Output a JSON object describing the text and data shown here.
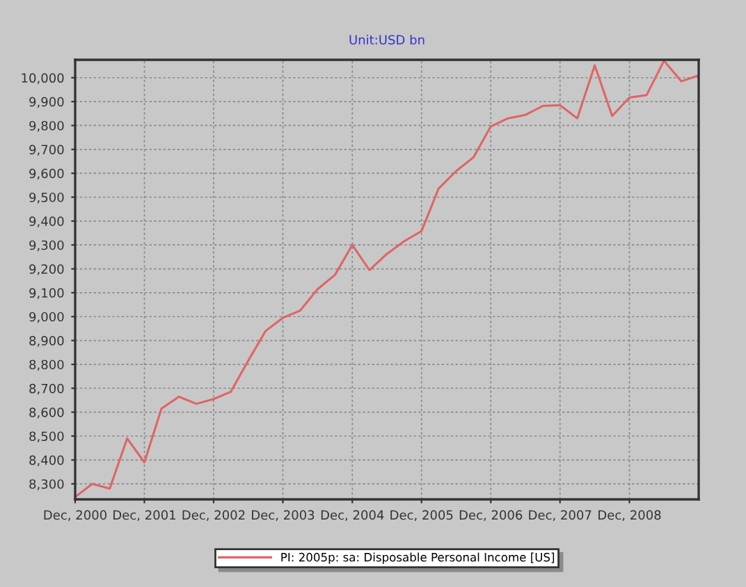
{
  "chart_data": {
    "type": "line",
    "title": "Unit:USD bn",
    "x": [
      "2000-12",
      "2001-03",
      "2001-06",
      "2001-09",
      "2001-12",
      "2002-03",
      "2002-06",
      "2002-09",
      "2002-12",
      "2003-03",
      "2003-06",
      "2003-09",
      "2003-12",
      "2004-03",
      "2004-06",
      "2004-09",
      "2004-12",
      "2005-03",
      "2005-06",
      "2005-09",
      "2005-12",
      "2006-03",
      "2006-06",
      "2006-09",
      "2006-12",
      "2007-03",
      "2007-06",
      "2007-09",
      "2007-12",
      "2008-03",
      "2008-06",
      "2008-09",
      "2008-12",
      "2009-03",
      "2009-06",
      "2009-09",
      "2009-12"
    ],
    "series": [
      {
        "name": "PI: 2005p: sa: Disposable Personal Income [US]",
        "color": "#e06464",
        "values": [
          8245,
          8300,
          8280,
          8490,
          8390,
          8615,
          8665,
          8635,
          8655,
          8685,
          8815,
          8940,
          8995,
          9025,
          9115,
          9175,
          9300,
          9195,
          9262,
          9316,
          9358,
          9536,
          9609,
          9667,
          9796,
          9830,
          9844,
          9882,
          9885,
          9830,
          10052,
          9840,
          9917,
          9927,
          10071,
          9985,
          10010
        ]
      }
    ],
    "xlim": [
      "2000-12",
      "2009-12"
    ],
    "xticks": [
      {
        "value": "2000-12",
        "label": "Dec, 2000"
      },
      {
        "value": "2001-12",
        "label": "Dec, 2001"
      },
      {
        "value": "2002-12",
        "label": "Dec, 2002"
      },
      {
        "value": "2003-12",
        "label": "Dec, 2003"
      },
      {
        "value": "2004-12",
        "label": "Dec, 2004"
      },
      {
        "value": "2005-12",
        "label": "Dec, 2005"
      },
      {
        "value": "2006-12",
        "label": "Dec, 2006"
      },
      {
        "value": "2007-12",
        "label": "Dec, 2007"
      },
      {
        "value": "2008-12",
        "label": "Dec, 2008"
      }
    ],
    "ylim": [
      8235,
      10075
    ],
    "yticks": [
      {
        "value": 8300,
        "label": "8,300"
      },
      {
        "value": 8400,
        "label": "8,400"
      },
      {
        "value": 8500,
        "label": "8,500"
      },
      {
        "value": 8600,
        "label": "8,600"
      },
      {
        "value": 8700,
        "label": "8,700"
      },
      {
        "value": 8800,
        "label": "8,800"
      },
      {
        "value": 8900,
        "label": "8,900"
      },
      {
        "value": 9000,
        "label": "9,000"
      },
      {
        "value": 9100,
        "label": "9,100"
      },
      {
        "value": 9200,
        "label": "9,200"
      },
      {
        "value": 9300,
        "label": "9,300"
      },
      {
        "value": 9400,
        "label": "9,400"
      },
      {
        "value": 9500,
        "label": "9,500"
      },
      {
        "value": 9600,
        "label": "9,600"
      },
      {
        "value": 9700,
        "label": "9,700"
      },
      {
        "value": 9800,
        "label": "9,800"
      },
      {
        "value": 9900,
        "label": "9,900"
      },
      {
        "value": 10000,
        "label": "10,000"
      }
    ],
    "grid": true,
    "legend": "bottom",
    "marker": "none",
    "line_style": "solid"
  }
}
